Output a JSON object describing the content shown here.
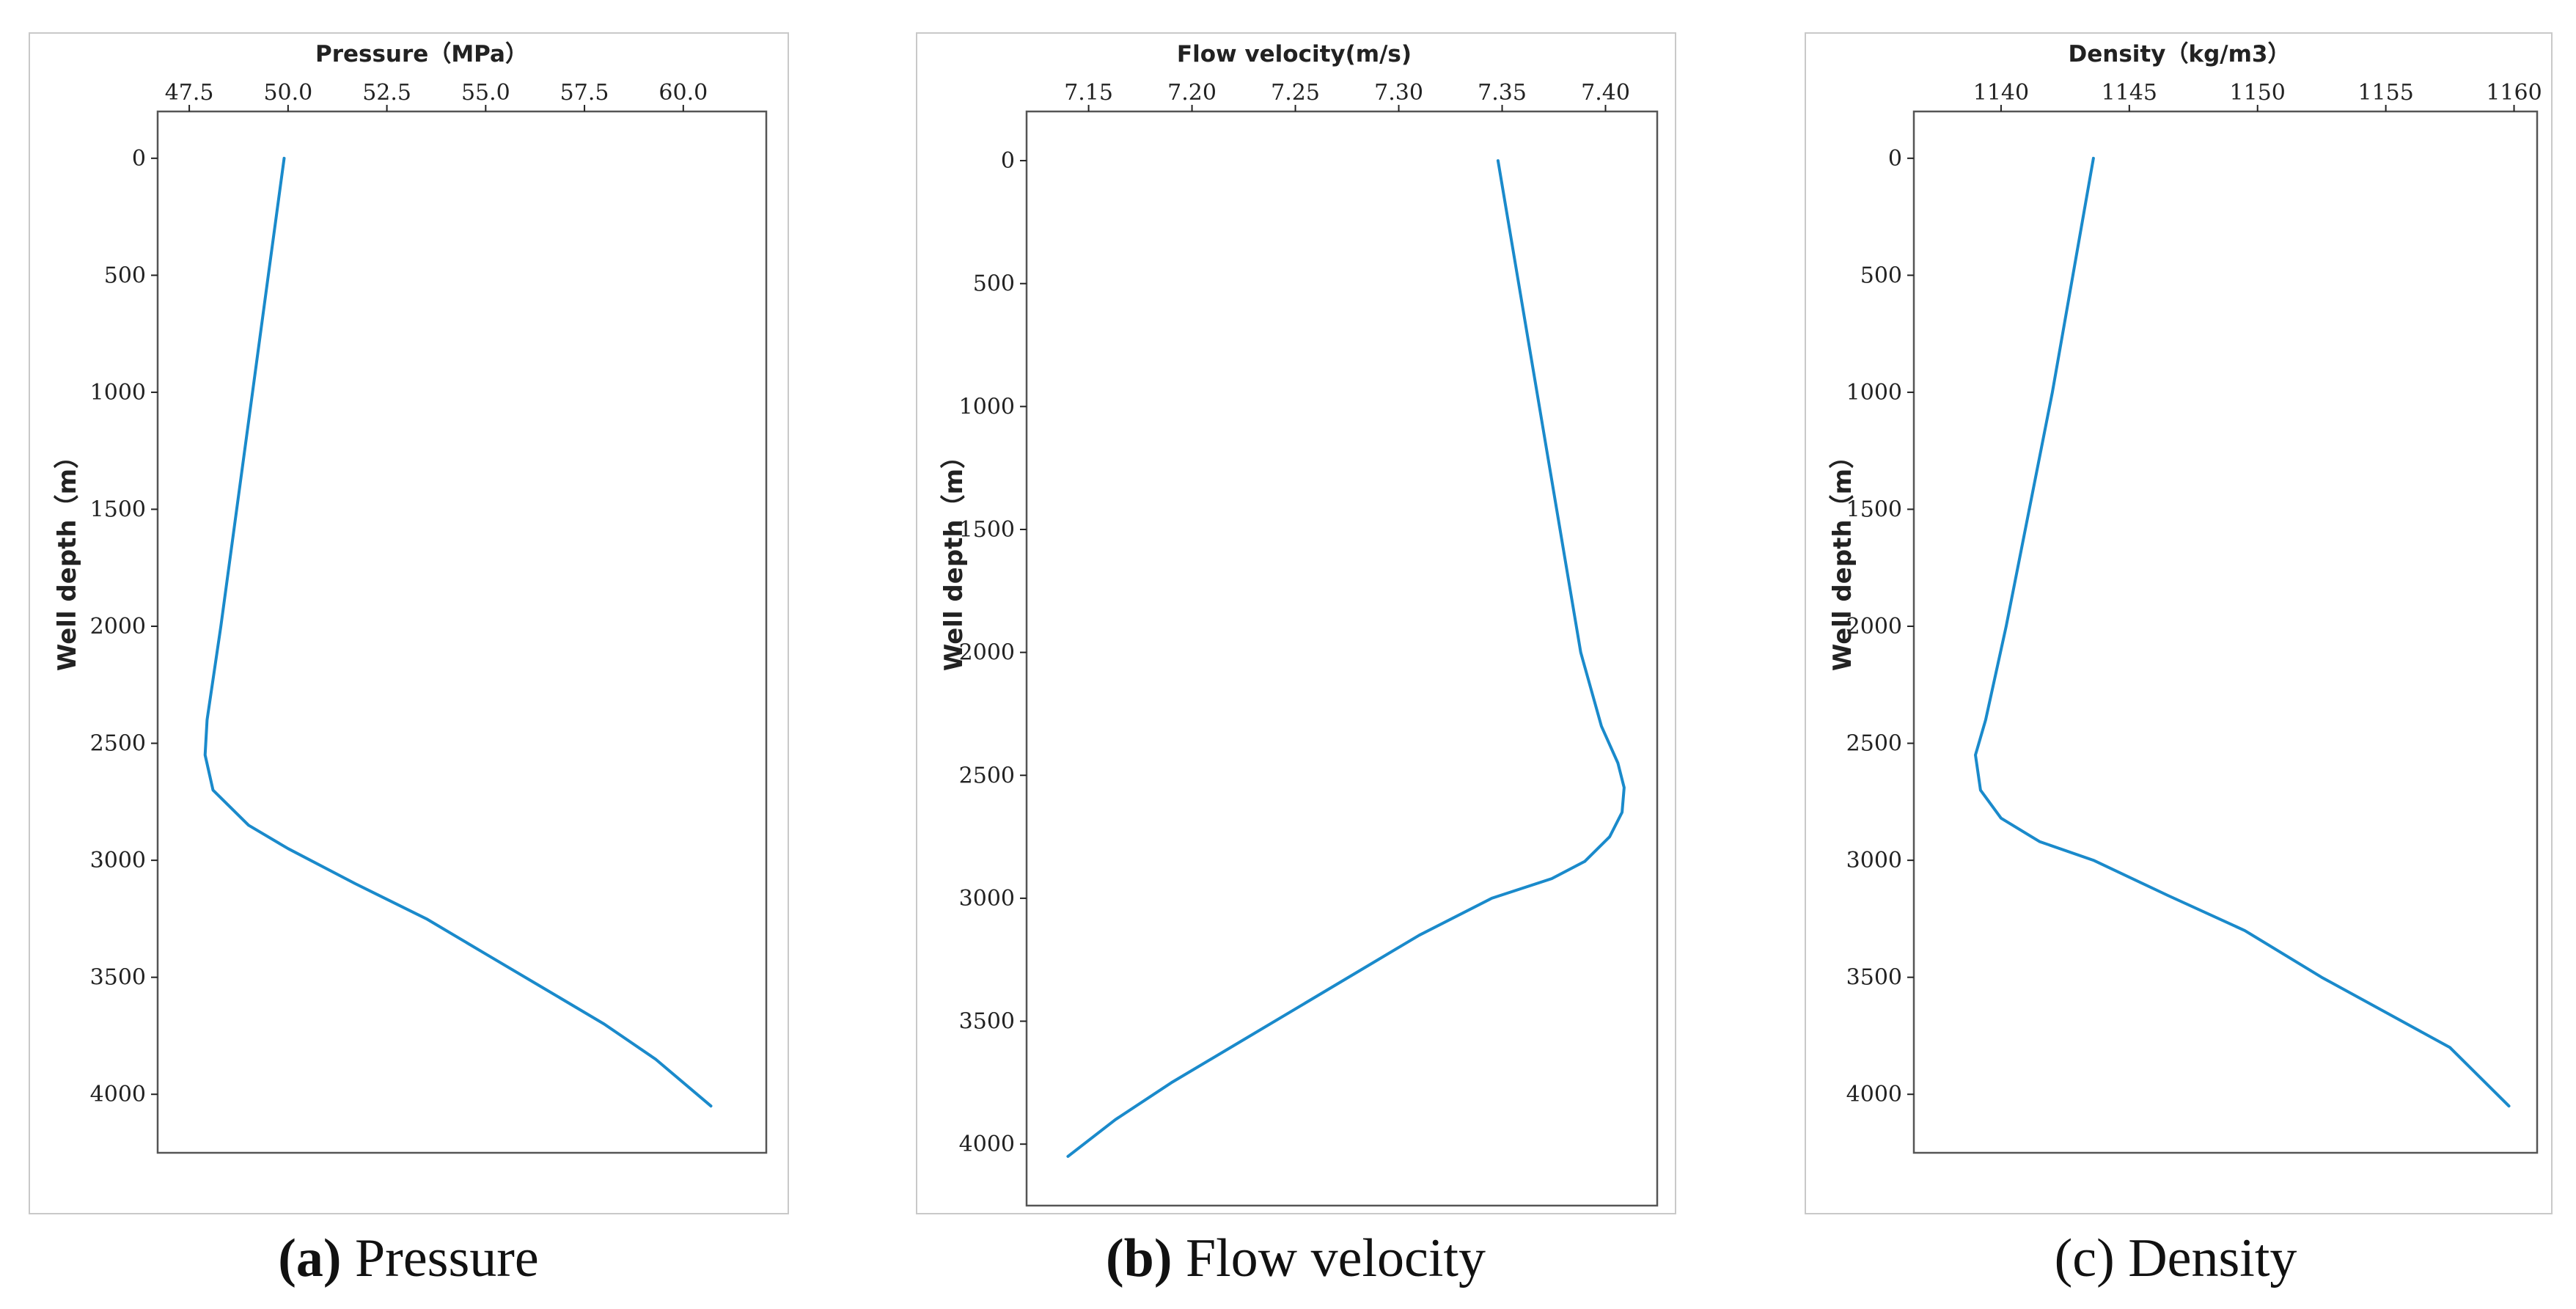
{
  "line_color": "#1a8acb",
  "chart_data": [
    {
      "type": "line",
      "id": "pressure",
      "xlabel": "Pressure（MPa）",
      "ylabel": "Well depth（m）",
      "x_ticks": [
        47.5,
        50.0,
        52.5,
        55.0,
        57.5,
        60.0
      ],
      "x_tick_labels": [
        "47.5",
        "50.0",
        "52.5",
        "55.0",
        "57.5",
        "60.0"
      ],
      "y_ticks": [
        0,
        500,
        1000,
        1500,
        2000,
        2500,
        3000,
        3500,
        4000
      ],
      "xlim": [
        46.7,
        62.1
      ],
      "ylim": [
        -200,
        4250
      ],
      "y_inverted": true,
      "caption_letter": "a",
      "caption_text": " Pressure",
      "caption_bold_letter": true,
      "series": [
        {
          "name": "Pressure",
          "x": [
            49.9,
            49.5,
            49.1,
            48.7,
            48.3,
            47.95,
            47.9,
            48.1,
            49.0,
            50.0,
            51.7,
            53.5,
            55.0,
            56.5,
            58.0,
            59.3,
            60.7
          ],
          "y": [
            0,
            500,
            1000,
            1500,
            2000,
            2400,
            2550,
            2700,
            2850,
            2950,
            3100,
            3250,
            3400,
            3550,
            3700,
            3850,
            4050
          ]
        }
      ]
    },
    {
      "type": "line",
      "id": "flow-velocity",
      "xlabel": "Flow velocity(m/s)",
      "ylabel": "Well depth（m）",
      "x_ticks": [
        7.15,
        7.2,
        7.25,
        7.3,
        7.35,
        7.4
      ],
      "x_tick_labels": [
        "7.15",
        "7.20",
        "7.25",
        "7.30",
        "7.35",
        "7.40"
      ],
      "y_ticks": [
        0,
        500,
        1000,
        1500,
        2000,
        2500,
        3000,
        3500,
        4000
      ],
      "xlim": [
        7.12,
        7.425
      ],
      "ylim": [
        -200,
        4250
      ],
      "y_inverted": true,
      "caption_letter": "b",
      "caption_text": " Flow velocity",
      "caption_bold_letter": true,
      "series": [
        {
          "name": "Flow velocity",
          "x": [
            7.348,
            7.358,
            7.368,
            7.378,
            7.388,
            7.398,
            7.406,
            7.409,
            7.408,
            7.402,
            7.39,
            7.374,
            7.345,
            7.31,
            7.28,
            7.25,
            7.22,
            7.19,
            7.163,
            7.14
          ],
          "y": [
            0,
            500,
            1000,
            1500,
            2000,
            2300,
            2450,
            2550,
            2650,
            2750,
            2850,
            2920,
            3000,
            3150,
            3300,
            3450,
            3600,
            3750,
            3900,
            4050
          ]
        }
      ]
    },
    {
      "type": "line",
      "id": "density",
      "xlabel": "Density（kg/m3）",
      "ylabel": "Well depth（m）",
      "x_ticks": [
        1140,
        1145,
        1150,
        1155,
        1160
      ],
      "x_tick_labels": [
        "1140",
        "1145",
        "1150",
        "1155",
        "1160"
      ],
      "y_ticks": [
        0,
        500,
        1000,
        1500,
        2000,
        2500,
        3000,
        3500,
        4000
      ],
      "xlim": [
        1136.6,
        1160.9
      ],
      "ylim": [
        -200,
        4250
      ],
      "y_inverted": true,
      "caption_letter": "(c)",
      "caption_text": " Density",
      "caption_bold_letter": false,
      "series": [
        {
          "name": "Density",
          "x": [
            1143.6,
            1142.8,
            1142.0,
            1141.1,
            1140.2,
            1139.4,
            1139.0,
            1139.2,
            1140.0,
            1141.5,
            1143.6,
            1146.5,
            1149.5,
            1152.5,
            1155.0,
            1157.5,
            1159.8
          ],
          "y": [
            0,
            500,
            1000,
            1500,
            2000,
            2400,
            2550,
            2700,
            2820,
            2920,
            3000,
            3150,
            3300,
            3500,
            3650,
            3800,
            4050
          ]
        }
      ]
    }
  ]
}
